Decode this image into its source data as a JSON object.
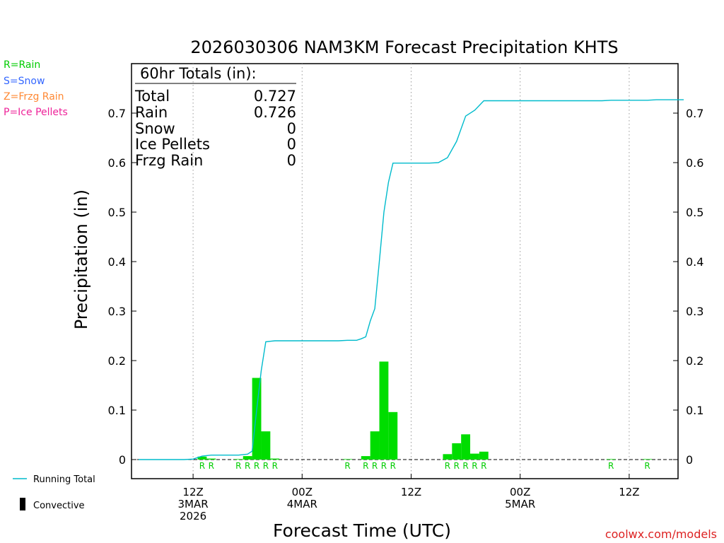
{
  "chart_data": {
    "type": "bar",
    "title": "2026030306 NAM3KM Forecast Precipitation KHTS",
    "xlabel": "Forecast Time (UTC)",
    "ylabel": "Precipitation (in)",
    "ylim": [
      -0.04,
      0.8
    ],
    "y_ticks": [
      0,
      0.1,
      0.2,
      0.3,
      0.4,
      0.5,
      0.6,
      0.7
    ],
    "y_tick_labels": [
      "0",
      "0.1",
      "0.2",
      "0.3",
      "0.4",
      "0.5",
      "0.6",
      "0.7"
    ],
    "x_unit": "forecast hour",
    "x_range": [
      0,
      60
    ],
    "x_ticks": [
      {
        "hour": 6,
        "lines": [
          "12Z",
          "3MAR",
          "2026"
        ]
      },
      {
        "hour": 18,
        "lines": [
          "00Z",
          "4MAR"
        ]
      },
      {
        "hour": 30,
        "lines": [
          "12Z"
        ]
      },
      {
        "hour": 42,
        "lines": [
          "00Z",
          "5MAR"
        ]
      },
      {
        "hour": 54,
        "lines": [
          "12Z"
        ]
      }
    ],
    "grid_hours": [
      6,
      18,
      30,
      42,
      54
    ],
    "bars": [
      {
        "hour": 7,
        "value": 0.006,
        "type": "R"
      },
      {
        "hour": 8,
        "value": 0.002,
        "type": "R"
      },
      {
        "hour": 11,
        "value": 0.001,
        "type": "R"
      },
      {
        "hour": 12,
        "value": 0.007,
        "type": "R"
      },
      {
        "hour": 13,
        "value": 0.165,
        "type": "R"
      },
      {
        "hour": 14,
        "value": 0.057,
        "type": "R"
      },
      {
        "hour": 15,
        "value": 0.002,
        "type": "R"
      },
      {
        "hour": 23,
        "value": 0.001,
        "type": "R"
      },
      {
        "hour": 25,
        "value": 0.007,
        "type": "R"
      },
      {
        "hour": 26,
        "value": 0.057,
        "type": "R"
      },
      {
        "hour": 27,
        "value": 0.198,
        "type": "R"
      },
      {
        "hour": 28,
        "value": 0.096,
        "type": "R"
      },
      {
        "hour": 34,
        "value": 0.011,
        "type": "R"
      },
      {
        "hour": 35,
        "value": 0.033,
        "type": "R"
      },
      {
        "hour": 36,
        "value": 0.051,
        "type": "R"
      },
      {
        "hour": 37,
        "value": 0.012,
        "type": "R"
      },
      {
        "hour": 38,
        "value": 0.016,
        "type": "R"
      },
      {
        "hour": 52,
        "value": 0.001,
        "type": "R"
      },
      {
        "hour": 56,
        "value": 0.001,
        "type": "R"
      }
    ],
    "running_total": {
      "name": "Running Total",
      "x": [
        0,
        5,
        6,
        7,
        8,
        9,
        10,
        11,
        12,
        12.5,
        13,
        13.5,
        14,
        15,
        16,
        17,
        18,
        19,
        20,
        21,
        22,
        23,
        24,
        24.5,
        25,
        25.5,
        26,
        26.5,
        27,
        27.5,
        28,
        29,
        30,
        31,
        32,
        33,
        34,
        35,
        36,
        37,
        38,
        39,
        40,
        44,
        48,
        51,
        52,
        53,
        54,
        55,
        56,
        57,
        58,
        60
      ],
      "y": [
        0.0,
        0.0,
        0.001,
        0.007,
        0.009,
        0.009,
        0.009,
        0.009,
        0.011,
        0.017,
        0.1,
        0.18,
        0.238,
        0.24,
        0.24,
        0.24,
        0.24,
        0.24,
        0.24,
        0.24,
        0.24,
        0.241,
        0.241,
        0.244,
        0.248,
        0.28,
        0.305,
        0.4,
        0.5,
        0.56,
        0.599,
        0.599,
        0.599,
        0.599,
        0.599,
        0.6,
        0.61,
        0.643,
        0.694,
        0.706,
        0.725,
        0.725,
        0.725,
        0.725,
        0.725,
        0.725,
        0.726,
        0.726,
        0.726,
        0.726,
        0.726,
        0.727,
        0.727,
        0.727
      ]
    },
    "totals_box": {
      "heading": "60hr Totals (in):",
      "rows": [
        {
          "label": "Total",
          "value": "0.727"
        },
        {
          "label": "Rain",
          "value": "0.726"
        },
        {
          "label": "Snow",
          "value": "0"
        },
        {
          "label": "Ice Pellets",
          "value": "0"
        },
        {
          "label": "Frzg Rain",
          "value": "0"
        }
      ]
    },
    "ptype_legend": [
      {
        "text": "R=Rain",
        "color": "#00cc00"
      },
      {
        "text": "S=Snow",
        "color": "#3366ff"
      },
      {
        "text": "Z=Frzg Rain",
        "color": "#ff8833"
      },
      {
        "text": "P=Ice Pellets",
        "color": "#ee2299"
      }
    ],
    "legend": {
      "running_total": "Running Total",
      "convective": "Convective"
    },
    "credit": "coolwx.com/models",
    "colors": {
      "bar": "#00dd00",
      "line": "#00bbcc",
      "ptype_label": "#00cc00",
      "credit": "#dd2222",
      "grid": "#999999"
    }
  }
}
